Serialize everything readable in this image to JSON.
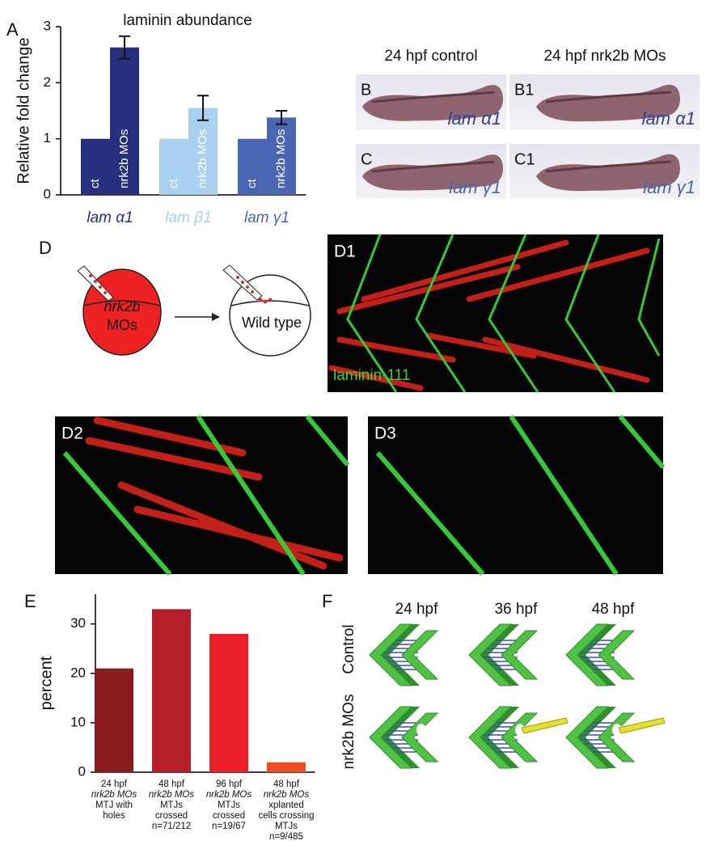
{
  "chart_data": [
    {
      "type": "bar",
      "panel": "A",
      "title": "laminin abundance",
      "y_label": "Relative fold change",
      "categories": [
        "lam α1",
        "lam β1",
        "lam γ1"
      ],
      "colors": [
        "#27307f",
        "#a8d0f0",
        "#4a66b2"
      ],
      "series": [
        {
          "name": "ct",
          "values": [
            1,
            1,
            1
          ]
        },
        {
          "name": "nrk2b MOs",
          "values": [
            2.63,
            1.55,
            1.38
          ],
          "errors": [
            0.2,
            0.22,
            0.12
          ]
        }
      ],
      "ylim": [
        0,
        3
      ],
      "yticks": [
        0,
        1,
        2,
        3
      ]
    },
    {
      "type": "bar",
      "panel": "E",
      "y_label": "percent",
      "categories": [
        [
          "24 hpf",
          "nrk2b MOs",
          "MTJ with",
          "holes"
        ],
        [
          "48 hpf",
          "nrk2b MOs",
          "MTJs",
          "crossed",
          "n=71/212"
        ],
        [
          "96 hpf",
          "nrk2b MOs",
          "MTJs",
          "crossed",
          "n=19/67"
        ],
        [
          "48 hpf",
          "nrk2b MOs",
          "xplanted",
          "cells crossing",
          "MTJs",
          "n=9/485"
        ]
      ],
      "colors": [
        "#8b1a1f",
        "#b7202a",
        "#ec1f28",
        "#f04b22"
      ],
      "values": [
        21,
        33,
        28,
        2
      ],
      "ylim": [
        0,
        36
      ],
      "yticks": [
        0,
        10,
        20,
        30
      ]
    }
  ],
  "in_situ": {
    "col_control": "24 hpf control",
    "col_mo": "24 hpf nrk2b MOs",
    "label_B": "B",
    "label_B1": "B1",
    "label_C": "C",
    "label_C1": "C1",
    "gene_a1": "lam α1",
    "gene_g1": "lam γ1"
  },
  "transplant": {
    "label": "D",
    "donor_line1": "nrk2b",
    "donor_line2": "MOs",
    "host": "Wild type"
  },
  "confocal": {
    "label_D1": "D1",
    "stain": "laminin-111",
    "label_D2": "D2",
    "label_D3": "D3"
  },
  "schematic": {
    "label": "F",
    "times": [
      "24 hpf",
      "36 hpf",
      "48 hpf"
    ],
    "rows": [
      "Control",
      "nrk2b MOs"
    ]
  }
}
